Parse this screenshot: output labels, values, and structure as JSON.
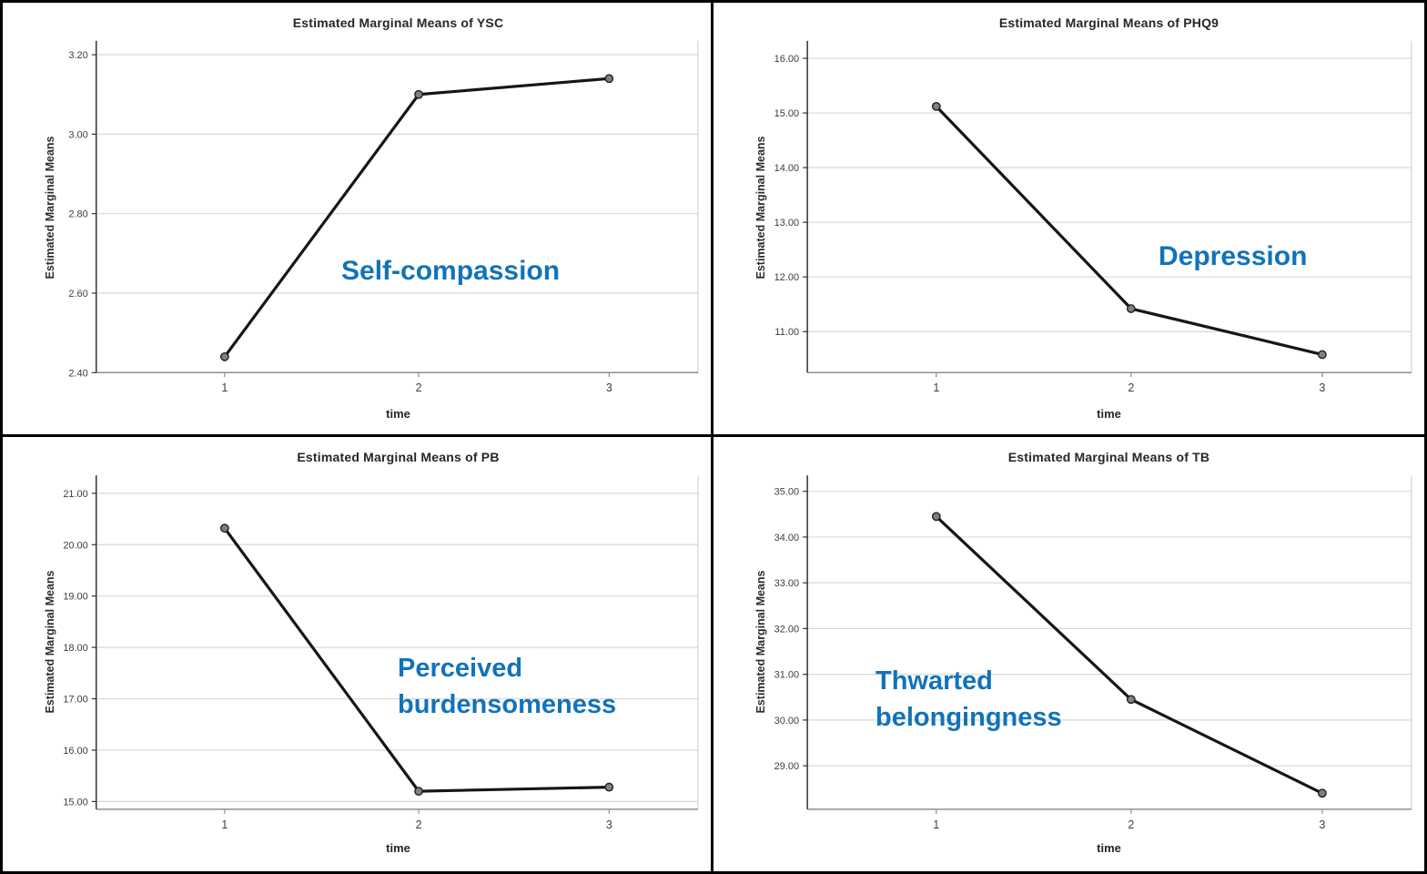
{
  "style": {
    "accent_blue": "#1173b9",
    "series_line": "#161616",
    "marker_fill": "#808080",
    "marker_edge": "#1f1f1f",
    "gridline": "#d8d8d8",
    "frame": "#8f8f8f",
    "right_frame": "#cccccc",
    "y_axis": "#333333",
    "tick_text": "#3d3d3d"
  },
  "chart_data": [
    {
      "type": "line",
      "title": "Estimated Marginal Means of YSC",
      "xlabel": "time",
      "ylabel": "Estimated Marginal Means",
      "categories": [
        "1",
        "2",
        "3"
      ],
      "values": [
        2.44,
        3.1,
        3.14
      ],
      "yticks": [
        {
          "v": 2.4,
          "label": "2.40"
        },
        {
          "v": 2.6,
          "label": "2.60"
        },
        {
          "v": 2.8,
          "label": "2.80"
        },
        {
          "v": 3.0,
          "label": "3.00"
        },
        {
          "v": 3.2,
          "label": "3.20"
        }
      ],
      "ylim": [
        2.4,
        3.235
      ],
      "grid": true,
      "legend": "none",
      "annotation_lines": [
        "Self-compassion"
      ]
    },
    {
      "type": "line",
      "title": "Estimated Marginal Means of PHQ9",
      "xlabel": "time",
      "ylabel": "Estimated Marginal Means",
      "categories": [
        "1",
        "2",
        "3"
      ],
      "values": [
        15.12,
        11.42,
        10.58
      ],
      "yticks": [
        {
          "v": 11.0,
          "label": "11.00"
        },
        {
          "v": 12.0,
          "label": "12.00"
        },
        {
          "v": 13.0,
          "label": "13.00"
        },
        {
          "v": 14.0,
          "label": "14.00"
        },
        {
          "v": 15.0,
          "label": "15.00"
        },
        {
          "v": 16.0,
          "label": "16.00"
        }
      ],
      "ylim": [
        10.25,
        16.32
      ],
      "grid": true,
      "legend": "none",
      "annotation_lines": [
        "Depression"
      ]
    },
    {
      "type": "line",
      "title": "Estimated Marginal Means of PB",
      "xlabel": "time",
      "ylabel": "Estimated Marginal Means",
      "categories": [
        "1",
        "2",
        "3"
      ],
      "values": [
        20.32,
        15.2,
        15.28
      ],
      "yticks": [
        {
          "v": 15.0,
          "label": "15.00"
        },
        {
          "v": 16.0,
          "label": "16.00"
        },
        {
          "v": 17.0,
          "label": "17.00"
        },
        {
          "v": 18.0,
          "label": "18.00"
        },
        {
          "v": 19.0,
          "label": "19.00"
        },
        {
          "v": 20.0,
          "label": "20.00"
        },
        {
          "v": 21.0,
          "label": "21.00"
        }
      ],
      "ylim": [
        14.85,
        21.35
      ],
      "grid": true,
      "legend": "none",
      "annotation_lines": [
        "Perceived",
        "burdensomeness"
      ]
    },
    {
      "type": "line",
      "title": "Estimated Marginal Means of TB",
      "xlabel": "time",
      "ylabel": "Estimated Marginal Means",
      "categories": [
        "1",
        "2",
        "3"
      ],
      "values": [
        34.45,
        30.45,
        28.4
      ],
      "yticks": [
        {
          "v": 29.0,
          "label": "29.00"
        },
        {
          "v": 30.0,
          "label": "30.00"
        },
        {
          "v": 31.0,
          "label": "31.00"
        },
        {
          "v": 32.0,
          "label": "32.00"
        },
        {
          "v": 33.0,
          "label": "33.00"
        },
        {
          "v": 34.0,
          "label": "34.00"
        },
        {
          "v": 35.0,
          "label": "35.00"
        }
      ],
      "ylim": [
        28.05,
        35.35
      ],
      "grid": true,
      "legend": "none",
      "annotation_lines": [
        "Thwarted",
        "belongingness"
      ]
    }
  ]
}
